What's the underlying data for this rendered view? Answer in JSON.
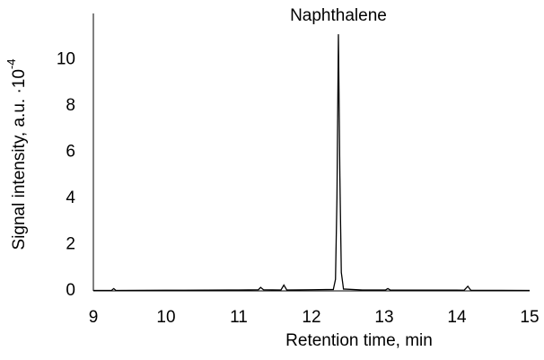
{
  "chart_data": {
    "type": "line",
    "xlabel": "Retention time, min",
    "ylabel": "Signal intensity, a.u. ·10",
    "ylabel_exponent": "-4",
    "annotation": {
      "text": "Naphthalene",
      "x": 12.37,
      "y": 11.1
    },
    "x": [
      9.0,
      9.25,
      9.28,
      9.31,
      10.0,
      10.25,
      11.0,
      11.27,
      11.3,
      11.34,
      11.58,
      11.62,
      11.66,
      12.0,
      12.3,
      12.33,
      12.35,
      12.37,
      12.39,
      12.41,
      12.44,
      12.7,
      13.02,
      13.05,
      13.08,
      14.1,
      14.15,
      14.19,
      15.0
    ],
    "series": [
      {
        "color": "#000000",
        "values": [
          0.02,
          0.02,
          0.1,
          0.02,
          0.03,
          0.03,
          0.04,
          0.05,
          0.15,
          0.05,
          0.04,
          0.25,
          0.04,
          0.05,
          0.06,
          0.5,
          4,
          11.1,
          5,
          0.8,
          0.08,
          0.04,
          0.04,
          0.1,
          0.04,
          0.03,
          0.2,
          0.03,
          0.02
        ]
      }
    ],
    "xlim": [
      9,
      15
    ],
    "xticks": [
      9,
      10,
      11,
      12,
      13,
      14,
      15
    ],
    "ylim": [
      0,
      12
    ],
    "yticks": [
      0,
      2,
      4,
      6,
      8,
      10
    ]
  }
}
